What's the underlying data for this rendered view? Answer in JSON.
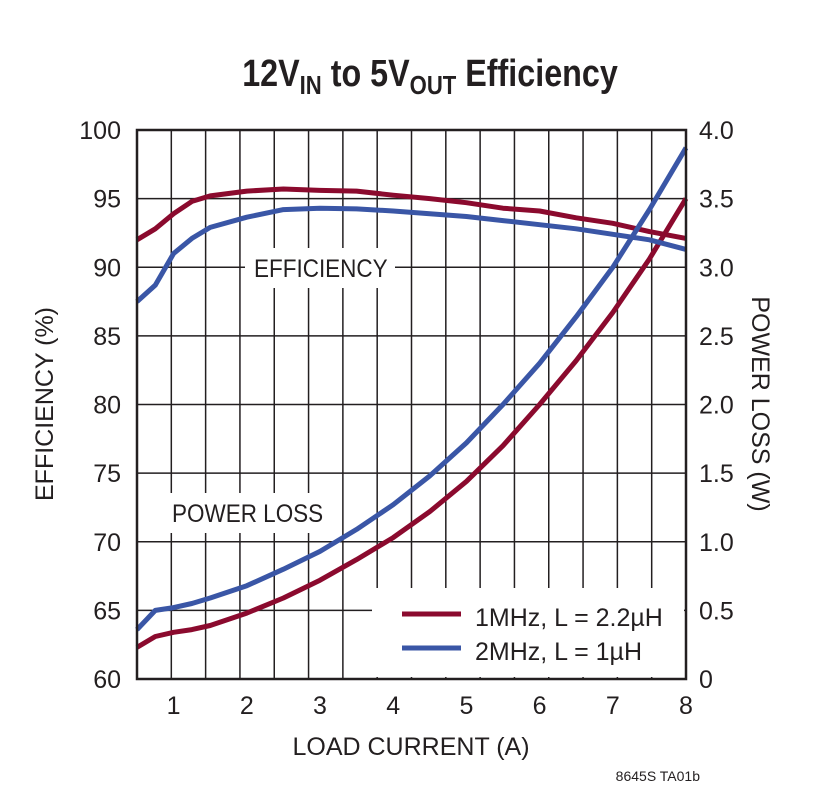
{
  "chart_data": {
    "type": "line",
    "title": {
      "p1": "12V",
      "sub1": "IN",
      "p2": " to 5V",
      "sub2": "OUT",
      "p3": " Efficiency"
    },
    "xlabel": "LOAD CURRENT (A)",
    "ylabel_left": "EFFICIENCY (%)",
    "ylabel_right": "POWER LOSS (W)",
    "xlim": [
      0.5,
      8
    ],
    "ylim_left": [
      60,
      100
    ],
    "ylim_right": [
      0,
      4.0
    ],
    "x_ticks": [
      "1",
      "2",
      "3",
      "4",
      "5",
      "6",
      "7",
      "8"
    ],
    "y_left_ticks": [
      "60",
      "65",
      "70",
      "75",
      "80",
      "85",
      "90",
      "95",
      "100"
    ],
    "y_right_ticks": [
      "0",
      "0.5",
      "1.0",
      "1.5",
      "2.0",
      "2.5",
      "3.0",
      "3.5",
      "4.0"
    ],
    "grid": true,
    "annotations": {
      "efficiency": "EFFICIENCY",
      "power_loss": "POWER LOSS"
    },
    "legend_position": "bottom-right",
    "footer": "8645S TA01b",
    "x": [
      0.5,
      0.75,
      1,
      1.25,
      1.5,
      2,
      2.5,
      3,
      3.5,
      4,
      4.5,
      5,
      5.5,
      6,
      6.5,
      7,
      7.5,
      8
    ],
    "series": [
      {
        "name": "1MHz, L = 2.2µH",
        "color": "#8b0a2e",
        "efficiency": [
          92.0,
          92.8,
          93.9,
          94.8,
          95.2,
          95.55,
          95.7,
          95.6,
          95.55,
          95.25,
          95.0,
          94.7,
          94.3,
          94.1,
          93.6,
          93.2,
          92.6,
          92.1
        ],
        "power_loss": [
          0.23,
          0.31,
          0.34,
          0.36,
          0.39,
          0.48,
          0.59,
          0.72,
          0.87,
          1.03,
          1.22,
          1.44,
          1.7,
          2.0,
          2.32,
          2.67,
          3.06,
          3.5
        ]
      },
      {
        "name": "2MHz, L = 1µH",
        "color": "#3a56a6",
        "efficiency": [
          87.5,
          88.7,
          91.0,
          92.1,
          92.9,
          93.65,
          94.2,
          94.3,
          94.25,
          94.1,
          93.9,
          93.7,
          93.4,
          93.1,
          92.8,
          92.4,
          92.0,
          91.3
        ],
        "power_loss": [
          0.36,
          0.5,
          0.52,
          0.55,
          0.59,
          0.68,
          0.8,
          0.93,
          1.09,
          1.27,
          1.48,
          1.72,
          2.0,
          2.3,
          2.64,
          3.0,
          3.42,
          3.87
        ]
      }
    ]
  }
}
